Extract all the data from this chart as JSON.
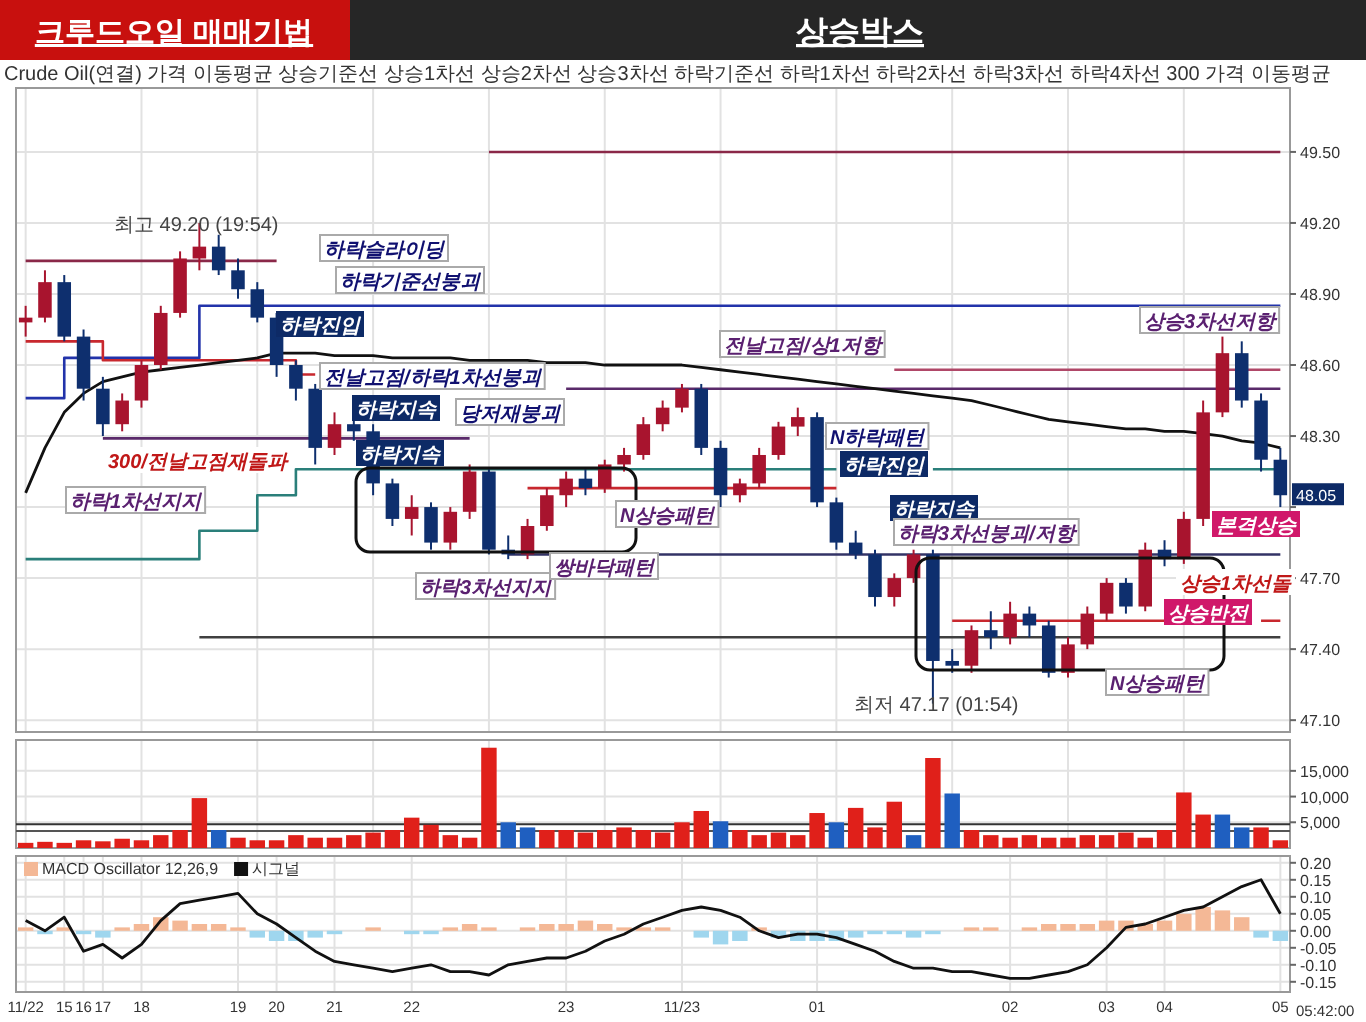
{
  "chart_data": [
    {
      "type": "candlestick",
      "title": "크루드오일 매매기법",
      "subtitle": "상승박스",
      "categories": [
        null,
        null,
        null,
        null,
        null,
        null,
        null,
        null,
        null,
        null,
        null,
        null,
        null,
        null,
        null,
        null,
        null,
        null,
        null,
        null,
        null,
        null,
        null,
        null,
        null,
        null,
        null,
        null,
        null,
        null,
        null,
        null,
        null,
        null,
        null,
        null,
        null,
        null,
        null,
        null,
        null,
        null,
        null,
        null,
        null,
        null,
        null,
        null,
        null,
        null,
        null,
        null,
        null,
        null,
        null,
        null,
        null,
        null,
        null,
        null,
        null,
        null,
        null,
        null,
        null,
        null
      ],
      "ohlc": [
        [
          48.78,
          48.85,
          48.72,
          48.8
        ],
        [
          48.8,
          49.0,
          48.78,
          48.95
        ],
        [
          48.95,
          48.98,
          48.7,
          48.72
        ],
        [
          48.72,
          48.75,
          48.45,
          48.5
        ],
        [
          48.5,
          48.55,
          48.3,
          48.35
        ],
        [
          48.35,
          48.48,
          48.32,
          48.45
        ],
        [
          48.45,
          48.62,
          48.42,
          48.6
        ],
        [
          48.6,
          48.85,
          48.58,
          48.82
        ],
        [
          48.82,
          49.08,
          48.8,
          49.05
        ],
        [
          49.05,
          49.2,
          49.0,
          49.1
        ],
        [
          49.1,
          49.15,
          48.98,
          49.0
        ],
        [
          49.0,
          49.05,
          48.88,
          48.92
        ],
        [
          48.92,
          48.95,
          48.78,
          48.8
        ],
        [
          48.8,
          48.82,
          48.55,
          48.6
        ],
        [
          48.6,
          48.62,
          48.45,
          48.5
        ],
        [
          48.5,
          48.52,
          48.18,
          48.25
        ],
        [
          48.25,
          48.4,
          48.22,
          48.35
        ],
        [
          48.35,
          48.42,
          48.28,
          48.32
        ],
        [
          48.32,
          48.35,
          48.05,
          48.1
        ],
        [
          48.1,
          48.12,
          47.92,
          47.95
        ],
        [
          47.95,
          48.05,
          47.88,
          48.0
        ],
        [
          48.0,
          48.02,
          47.82,
          47.85
        ],
        [
          47.85,
          48.0,
          47.82,
          47.98
        ],
        [
          47.98,
          48.18,
          47.95,
          48.15
        ],
        [
          48.15,
          48.16,
          47.8,
          47.82
        ],
        [
          47.82,
          47.88,
          47.78,
          47.8
        ],
        [
          47.8,
          47.95,
          47.78,
          47.92
        ],
        [
          47.92,
          48.08,
          47.9,
          48.05
        ],
        [
          48.05,
          48.15,
          48.0,
          48.12
        ],
        [
          48.12,
          48.16,
          48.05,
          48.08
        ],
        [
          48.08,
          48.2,
          48.06,
          48.18
        ],
        [
          48.18,
          48.25,
          48.15,
          48.22
        ],
        [
          48.22,
          48.38,
          48.2,
          48.35
        ],
        [
          48.35,
          48.45,
          48.32,
          48.42
        ],
        [
          48.42,
          48.52,
          48.4,
          48.5
        ],
        [
          48.5,
          48.52,
          48.22,
          48.25
        ],
        [
          48.25,
          48.28,
          48.0,
          48.05
        ],
        [
          48.05,
          48.12,
          48.02,
          48.1
        ],
        [
          48.1,
          48.25,
          48.08,
          48.22
        ],
        [
          48.22,
          48.36,
          48.2,
          48.34
        ],
        [
          48.34,
          48.42,
          48.3,
          48.38
        ],
        [
          48.38,
          48.4,
          48.0,
          48.02
        ],
        [
          48.02,
          48.04,
          47.82,
          47.85
        ],
        [
          47.85,
          47.9,
          47.78,
          47.8
        ],
        [
          47.8,
          47.82,
          47.58,
          47.62
        ],
        [
          47.62,
          47.72,
          47.58,
          47.7
        ],
        [
          47.7,
          47.82,
          47.68,
          47.8
        ],
        [
          47.8,
          47.82,
          47.17,
          47.35
        ],
        [
          47.35,
          47.4,
          47.3,
          47.33
        ],
        [
          47.33,
          47.5,
          47.3,
          47.48
        ],
        [
          47.48,
          47.56,
          47.4,
          47.45
        ],
        [
          47.45,
          47.6,
          47.42,
          47.55
        ],
        [
          47.55,
          47.58,
          47.45,
          47.5
        ],
        [
          47.5,
          47.52,
          47.28,
          47.3
        ],
        [
          47.3,
          47.45,
          47.28,
          47.42
        ],
        [
          47.42,
          47.58,
          47.4,
          47.55
        ],
        [
          47.55,
          47.7,
          47.52,
          47.68
        ],
        [
          47.68,
          47.7,
          47.55,
          47.58
        ],
        [
          47.58,
          47.85,
          47.56,
          47.82
        ],
        [
          47.82,
          47.86,
          47.75,
          47.78
        ],
        [
          47.78,
          47.98,
          47.76,
          47.95
        ],
        [
          47.95,
          48.45,
          47.92,
          48.4
        ],
        [
          48.4,
          48.72,
          48.38,
          48.65
        ],
        [
          48.65,
          48.7,
          48.42,
          48.45
        ],
        [
          48.45,
          48.48,
          48.15,
          48.2
        ],
        [
          48.2,
          48.25,
          48.0,
          48.05
        ]
      ],
      "colors": [
        "#a8142e",
        "#a8142e",
        "#0e2f6e",
        "#0e2f6e",
        "#0e2f6e",
        "#a8142e",
        "#a8142e",
        "#a8142e",
        "#a8142e",
        "#a8142e",
        "#0e2f6e",
        "#0e2f6e",
        "#0e2f6e",
        "#0e2f6e",
        "#0e2f6e",
        "#0e2f6e",
        "#a8142e",
        "#0e2f6e",
        "#0e2f6e",
        "#0e2f6e",
        "#a8142e",
        "#0e2f6e",
        "#a8142e",
        "#a8142e",
        "#0e2f6e",
        "#0e2f6e",
        "#a8142e",
        "#a8142e",
        "#a8142e",
        "#0e2f6e",
        "#a8142e",
        "#a8142e",
        "#a8142e",
        "#a8142e",
        "#a8142e",
        "#0e2f6e",
        "#0e2f6e",
        "#a8142e",
        "#a8142e",
        "#a8142e",
        "#a8142e",
        "#0e2f6e",
        "#0e2f6e",
        "#0e2f6e",
        "#0e2f6e",
        "#a8142e",
        "#a8142e",
        "#0e2f6e",
        "#0e2f6e",
        "#a8142e",
        "#0e2f6e",
        "#a8142e",
        "#0e2f6e",
        "#0e2f6e",
        "#a8142e",
        "#a8142e",
        "#a8142e",
        "#0e2f6e",
        "#a8142e",
        "#0e2f6e",
        "#a8142e",
        "#a8142e",
        "#a8142e",
        "#0e2f6e",
        "#0e2f6e",
        "#0e2f6e"
      ],
      "series": [
        {
          "type": "step",
          "color": "#2233aa",
          "values": [
            48.46,
            48.46,
            48.63,
            48.63,
            48.63,
            48.63,
            48.63,
            48.63,
            48.63,
            48.85,
            48.85,
            48.85,
            48.85,
            48.85,
            48.85,
            48.85,
            48.85,
            48.85,
            48.85,
            48.85,
            48.85,
            48.85,
            48.85,
            48.85,
            48.85,
            48.85,
            48.85,
            48.85,
            48.85,
            48.85,
            48.85,
            48.85,
            48.85,
            48.85,
            48.85,
            48.85,
            48.85,
            48.85,
            48.85,
            48.85,
            48.85,
            48.85,
            48.85,
            48.85,
            48.85,
            48.85,
            48.85,
            48.85,
            48.85,
            48.85,
            48.85,
            48.85,
            48.85,
            48.85,
            48.85,
            48.85,
            48.85,
            48.85,
            48.85,
            48.85,
            48.85,
            48.85,
            48.85,
            48.85,
            48.85,
            48.85
          ]
        },
        {
          "type": "step",
          "color": "#c8282e",
          "values": [
            48.7,
            48.7,
            48.7,
            48.7,
            48.62,
            48.62,
            48.62,
            48.62,
            48.62,
            48.62,
            48.62,
            48.62,
            48.62,
            48.62,
            48.56,
            48.56,
            null,
            null,
            null,
            null,
            null,
            null,
            null,
            null,
            null,
            null,
            48.08,
            48.08,
            48.08,
            48.08,
            48.08,
            48.08,
            48.08,
            48.08,
            48.08,
            48.08,
            48.08,
            48.08,
            48.08,
            48.08,
            48.08,
            48.08,
            48.08,
            null,
            null,
            null,
            null,
            null,
            47.52,
            47.52,
            47.52,
            47.52,
            47.52,
            47.52,
            47.52,
            47.52,
            47.52,
            47.52,
            47.52,
            47.52,
            null,
            null,
            null,
            null,
            47.52,
            47.52
          ]
        },
        {
          "type": "step",
          "color": "#2a7f7a",
          "values": [
            47.78,
            47.78,
            47.78,
            47.78,
            47.78,
            47.78,
            47.78,
            47.78,
            47.78,
            47.9,
            47.9,
            47.9,
            48.05,
            48.05,
            48.16,
            48.16,
            48.16,
            48.16,
            48.16,
            48.16,
            48.16,
            48.16,
            48.16,
            48.16,
            48.16,
            48.16,
            48.16,
            48.16,
            48.16,
            48.16,
            48.16,
            48.16,
            48.16,
            48.16,
            48.16,
            48.16,
            48.16,
            48.16,
            48.16,
            48.16,
            48.16,
            48.16,
            48.16,
            null,
            null,
            null,
            null,
            48.16,
            48.16,
            48.16,
            48.16,
            48.16,
            48.16,
            48.16,
            48.16,
            48.16,
            48.16,
            48.16,
            48.16,
            48.16,
            48.16,
            48.16,
            48.16,
            48.16,
            48.16,
            48.16
          ]
        },
        {
          "type": "step",
          "color": "#5a2a6a",
          "values": [
            null,
            null,
            null,
            null,
            48.29,
            48.29,
            48.29,
            48.29,
            48.29,
            48.29,
            48.29,
            48.29,
            48.29,
            48.29,
            48.29,
            48.29,
            48.29,
            48.29,
            48.29,
            48.29,
            48.29,
            48.29,
            48.29,
            48.29,
            null,
            null,
            null,
            null,
            48.5,
            48.5,
            48.5,
            48.5,
            48.5,
            48.5,
            48.5,
            48.5,
            48.5,
            48.5,
            48.5,
            48.5,
            48.5,
            48.5,
            48.5,
            48.5,
            48.5,
            48.5,
            48.5,
            48.5,
            48.5,
            48.5,
            48.5,
            48.5,
            48.5,
            48.5,
            48.5,
            48.5,
            48.5,
            48.5,
            48.5,
            48.5,
            48.5,
            48.5,
            48.5,
            48.5,
            48.5,
            48.5
          ]
        },
        {
          "type": "step",
          "color": "#333366",
          "values": [
            null,
            null,
            null,
            null,
            null,
            null,
            null,
            null,
            null,
            null,
            null,
            null,
            null,
            null,
            null,
            null,
            null,
            null,
            null,
            null,
            null,
            null,
            null,
            null,
            null,
            47.8,
            47.8,
            47.8,
            47.8,
            47.8,
            47.8,
            47.8,
            47.8,
            47.8,
            47.8,
            47.8,
            47.8,
            47.8,
            47.8,
            47.8,
            47.8,
            47.8,
            47.8,
            47.8,
            47.8,
            47.8,
            47.8,
            47.8,
            47.8,
            47.8,
            47.8,
            47.8,
            47.8,
            47.8,
            47.8,
            47.8,
            47.8,
            47.8,
            47.8,
            47.8,
            47.8,
            47.8,
            47.8,
            47.8,
            47.8,
            47.8
          ]
        },
        {
          "type": "step",
          "color": "#404040",
          "values": [
            null,
            null,
            null,
            null,
            null,
            null,
            null,
            null,
            null,
            47.45,
            47.45,
            47.45,
            47.45,
            47.45,
            47.45,
            47.45,
            47.45,
            47.45,
            47.45,
            47.45,
            47.45,
            47.45,
            47.45,
            47.45,
            47.45,
            47.45,
            47.45,
            47.45,
            47.45,
            47.45,
            47.45,
            47.45,
            47.45,
            47.45,
            47.45,
            47.45,
            47.45,
            47.45,
            47.45,
            47.45,
            47.45,
            47.45,
            47.45,
            47.45,
            47.45,
            47.45,
            47.45,
            47.45,
            47.45,
            47.45,
            47.45,
            47.45,
            47.45,
            47.45,
            47.45,
            47.45,
            47.45,
            47.45,
            47.45,
            47.45,
            47.45,
            47.45,
            47.45,
            47.45,
            47.45,
            47.45
          ]
        },
        {
          "type": "step",
          "color": "#8a2848",
          "values": [
            49.04,
            49.04,
            49.04,
            49.04,
            49.04,
            49.04,
            49.04,
            49.04,
            49.04,
            49.04,
            49.04,
            49.04,
            49.04,
            49.04,
            null,
            null,
            null,
            null,
            null,
            null,
            null,
            null,
            null,
            null,
            49.5,
            49.5,
            49.5,
            49.5,
            49.5,
            49.5,
            49.5,
            49.5,
            49.5,
            49.5,
            49.5,
            49.5,
            49.5,
            49.5,
            49.5,
            49.5,
            49.5,
            49.5,
            49.5,
            49.5,
            49.5,
            49.5,
            49.5,
            49.5,
            49.5,
            49.5,
            49.5,
            49.5,
            49.5,
            49.5,
            49.5,
            49.5,
            49.5,
            49.5,
            49.5,
            49.5,
            49.5,
            49.5,
            49.5,
            49.5,
            49.5,
            49.5
          ]
        },
        {
          "type": "step",
          "color": "#b04868",
          "values": [
            null,
            null,
            null,
            null,
            null,
            null,
            null,
            null,
            null,
            null,
            null,
            null,
            null,
            null,
            null,
            null,
            null,
            null,
            null,
            null,
            null,
            null,
            null,
            null,
            null,
            null,
            null,
            null,
            null,
            null,
            null,
            null,
            null,
            null,
            null,
            null,
            null,
            null,
            null,
            null,
            null,
            null,
            null,
            null,
            null,
            48.58,
            48.58,
            48.58,
            48.58,
            48.58,
            48.58,
            48.58,
            48.58,
            48.58,
            48.58,
            48.58,
            48.58,
            48.58,
            48.58,
            48.58,
            48.58,
            48.58,
            48.58,
            48.58,
            48.58,
            48.58
          ]
        },
        {
          "type": "line",
          "color": "#111111",
          "values": [
            48.06,
            48.25,
            48.4,
            48.48,
            48.53,
            48.55,
            48.57,
            48.58,
            48.59,
            48.6,
            48.61,
            48.62,
            48.63,
            48.65,
            48.65,
            48.65,
            48.64,
            48.64,
            48.64,
            48.63,
            48.63,
            48.63,
            48.63,
            48.62,
            48.62,
            48.62,
            48.62,
            48.61,
            48.61,
            48.61,
            48.6,
            48.6,
            48.6,
            48.6,
            48.6,
            48.59,
            48.58,
            48.57,
            48.56,
            48.55,
            48.54,
            48.53,
            48.52,
            48.51,
            48.5,
            48.49,
            48.48,
            48.47,
            48.46,
            48.45,
            48.43,
            48.41,
            48.39,
            48.37,
            48.36,
            48.35,
            48.34,
            48.33,
            48.33,
            48.32,
            48.32,
            48.31,
            48.3,
            48.28,
            48.27,
            48.25
          ]
        }
      ],
      "ylim": [
        47.05,
        49.77
      ],
      "yticks": [
        {
          "value": 47.1,
          "label": "47.10"
        },
        {
          "value": 47.4,
          "label": "47.40"
        },
        {
          "value": 47.7,
          "label": "47.70"
        },
        {
          "value": 48.0,
          "label": null
        },
        {
          "value": 48.3,
          "label": "48.30"
        },
        {
          "value": 48.6,
          "label": "48.60"
        },
        {
          "value": 48.9,
          "label": "48.90"
        },
        {
          "value": 49.2,
          "label": "49.20"
        },
        {
          "value": 49.5,
          "label": "49.50"
        }
      ],
      "tick_labels": "y",
      "grid": true,
      "annotations": [
        "Crude Oil(연결) 가격 이동평균 상승기준선 상승1차선 상승2차선 상승3차선 하락기준선 하락1차선 하락2차선 하락3차선 하락4차선 300 가격 이동평균",
        "하락슬라이딩",
        "하락기준선붕괴",
        "하락진입",
        "전날고점/하락1차선붕괴",
        "300/전날고점재돌파",
        "하락지속",
        "당저재붕괴",
        "하락지속",
        "하락1차선지지",
        "하락3차선지지",
        "쌍바닥패턴",
        "N상승패턴",
        "전날고점/상1저항",
        "N하락패턴",
        "하락진입",
        "하락지속",
        "하락3차선붕괴/저항",
        "N상승패턴",
        "상승반전",
        "본격상승",
        "상승1차선돌",
        "상승3차선저항",
        {
          "text": "최고 49.20 (19:54)",
          "y": 49.2
        },
        {
          "text": "최저 47.17 (01:54)",
          "y": 47.17
        },
        {
          "text": "48.05",
          "y": 48.05
        }
      ]
    },
    {
      "type": "bar",
      "categories": [
        null,
        null,
        null,
        null,
        null,
        null,
        null,
        null,
        null,
        null,
        null,
        null,
        null,
        null,
        null,
        null,
        null,
        null,
        null,
        null,
        null,
        null,
        null,
        null,
        null,
        null,
        null,
        null,
        null,
        null,
        null,
        null,
        null,
        null,
        null,
        null,
        null,
        null,
        null,
        null,
        null,
        null,
        null,
        null,
        null,
        null,
        null,
        null,
        null,
        null,
        null,
        null,
        null,
        null,
        null,
        null,
        null,
        null,
        null,
        null,
        null,
        null,
        null,
        null,
        null,
        null
      ],
      "values": [
        1000,
        1200,
        1000,
        1500,
        1300,
        1800,
        1500,
        2500,
        3500,
        9700,
        3500,
        2000,
        1500,
        1500,
        2500,
        2000,
        2000,
        2500,
        3000,
        3500,
        5900,
        4500,
        2500,
        2000,
        19500,
        5000,
        4000,
        3500,
        3500,
        3000,
        3500,
        4000,
        3500,
        3000,
        5000,
        7200,
        5200,
        3500,
        2500,
        3000,
        2500,
        6800,
        5000,
        7800,
        4000,
        9000,
        2500,
        17500,
        10600,
        3500,
        2500,
        2000,
        2500,
        2000,
        2000,
        2500,
        2500,
        3000,
        2000,
        3500,
        10800,
        6500,
        6500,
        4000,
        4000,
        1500
      ],
      "colors": [
        "#e0201a",
        "#e0201a",
        "#e0201a",
        "#e0201a",
        "#e0201a",
        "#e0201a",
        "#e0201a",
        "#e0201a",
        "#e0201a",
        "#e0201a",
        "#1f5fc0",
        "#e0201a",
        "#e0201a",
        "#e0201a",
        "#e0201a",
        "#e0201a",
        "#e0201a",
        "#e0201a",
        "#e0201a",
        "#e0201a",
        "#e0201a",
        "#e0201a",
        "#e0201a",
        "#e0201a",
        "#e0201a",
        "#1f5fc0",
        "#1f5fc0",
        "#e0201a",
        "#e0201a",
        "#e0201a",
        "#e0201a",
        "#e0201a",
        "#e0201a",
        "#e0201a",
        "#e0201a",
        "#e0201a",
        "#1f5fc0",
        "#e0201a",
        "#e0201a",
        "#e0201a",
        "#e0201a",
        "#e0201a",
        "#1f5fc0",
        "#e0201a",
        "#e0201a",
        "#e0201a",
        "#1f5fc0",
        "#e0201a",
        "#1f5fc0",
        "#e0201a",
        "#e0201a",
        "#e0201a",
        "#e0201a",
        "#e0201a",
        "#e0201a",
        "#e0201a",
        "#e0201a",
        "#e0201a",
        "#e0201a",
        "#e0201a",
        "#e0201a",
        "#e0201a",
        "#1f5fc0",
        "#1f5fc0",
        "#e0201a",
        "#e0201a"
      ],
      "ylim": [
        0,
        21000
      ],
      "yticks": [
        {
          "value": 5000,
          "label": "5,000"
        },
        {
          "value": 10000,
          "label": "10,000"
        },
        {
          "value": 15000,
          "label": "15,000"
        }
      ],
      "tick_labels": "y",
      "grid": true,
      "ref_lines": [
        {
          "axis": "y",
          "value": 4600,
          "color": "#333333"
        },
        {
          "axis": "y",
          "value": 3300,
          "color": "#555555"
        }
      ]
    },
    {
      "type": "bar",
      "categories": [
        "11/22",
        null,
        "15",
        "16",
        "17",
        null,
        "18",
        null,
        null,
        null,
        null,
        "19",
        null,
        "20",
        null,
        null,
        "21",
        null,
        null,
        null,
        "22",
        null,
        null,
        null,
        null,
        null,
        null,
        null,
        "23",
        null,
        null,
        null,
        null,
        null,
        "11/23",
        null,
        null,
        null,
        null,
        null,
        null,
        "01",
        null,
        null,
        null,
        null,
        null,
        null,
        null,
        null,
        null,
        "02",
        null,
        null,
        null,
        null,
        "03",
        null,
        null,
        "04",
        null,
        null,
        null,
        null,
        null,
        "05"
      ],
      "series": [
        {
          "name": "MACD Oscillator 12,26,9",
          "type": "bar",
          "colors": [
            "#f4b896",
            "#9fd6ee",
            "#f4b896",
            "#9fd6ee",
            "#9fd6ee",
            "#f4b896",
            "#f4b896",
            "#f4b896",
            "#f4b896",
            "#f4b896",
            "#f4b896",
            "#f4b896",
            "#9fd6ee",
            "#9fd6ee",
            "#9fd6ee",
            "#9fd6ee",
            "#9fd6ee",
            "#f4b896",
            "#f4b896",
            "#f4b896",
            "#9fd6ee",
            "#9fd6ee",
            "#f4b896",
            "#f4b896",
            "#f4b896",
            "#f4b896",
            "#f4b896",
            "#f4b896",
            "#f4b896",
            "#f4b896",
            "#f4b896",
            "#f4b896",
            "#f4b896",
            "#f4b896",
            "#f4b896",
            "#9fd6ee",
            "#9fd6ee",
            "#9fd6ee",
            "#f4b896",
            "#9fd6ee",
            "#9fd6ee",
            "#9fd6ee",
            "#9fd6ee",
            "#9fd6ee",
            "#9fd6ee",
            "#9fd6ee",
            "#9fd6ee",
            "#9fd6ee",
            "#f4b896",
            "#f4b896",
            "#f4b896",
            "#f4b896",
            "#f4b896",
            "#f4b896",
            "#f4b896",
            "#f4b896",
            "#f4b896",
            "#f4b896",
            "#f4b896",
            "#f4b896",
            "#f4b896",
            "#f4b896",
            "#f4b896",
            "#f4b896",
            "#9fd6ee",
            "#9fd6ee"
          ],
          "values": [
            0.01,
            -0.01,
            0.01,
            -0.01,
            -0.02,
            0.01,
            0.02,
            0.04,
            0.03,
            0.02,
            0.02,
            0.01,
            -0.02,
            -0.03,
            -0.03,
            -0.02,
            -0.01,
            0.0,
            0.01,
            0.0,
            -0.01,
            -0.01,
            0.01,
            0.02,
            0.01,
            0.0,
            0.01,
            0.02,
            0.02,
            0.03,
            0.02,
            0.01,
            0.01,
            0.01,
            0.0,
            -0.02,
            -0.04,
            -0.03,
            0.01,
            -0.02,
            -0.03,
            -0.03,
            -0.03,
            -0.02,
            -0.01,
            -0.01,
            -0.02,
            -0.01,
            0.0,
            0.01,
            0.01,
            0.0,
            0.01,
            0.02,
            0.02,
            0.02,
            0.03,
            0.03,
            0.02,
            0.03,
            0.05,
            0.07,
            0.06,
            0.04,
            -0.02,
            -0.03
          ]
        },
        {
          "name": "시그널",
          "type": "line",
          "color": "#111111",
          "values": [
            0.03,
            0.0,
            0.04,
            -0.06,
            -0.04,
            -0.08,
            -0.04,
            0.03,
            0.08,
            0.09,
            0.1,
            0.11,
            0.05,
            0.02,
            -0.02,
            -0.06,
            -0.09,
            -0.1,
            -0.11,
            -0.12,
            -0.11,
            -0.1,
            -0.12,
            -0.12,
            -0.13,
            -0.1,
            -0.09,
            -0.08,
            -0.08,
            -0.06,
            -0.03,
            -0.01,
            0.02,
            0.04,
            0.06,
            0.07,
            0.06,
            0.04,
            0.0,
            -0.02,
            -0.01,
            -0.01,
            -0.02,
            -0.04,
            -0.06,
            -0.09,
            -0.11,
            -0.11,
            -0.12,
            -0.12,
            -0.13,
            -0.14,
            -0.14,
            -0.13,
            -0.12,
            -0.1,
            -0.05,
            0.01,
            0.02,
            0.04,
            0.06,
            0.07,
            0.1,
            0.13,
            0.15,
            0.05
          ]
        }
      ],
      "ylim": [
        -0.18,
        0.22
      ],
      "yticks": [
        {
          "value": -0.15,
          "label": "-0.15"
        },
        {
          "value": -0.1,
          "label": "-0.10"
        },
        {
          "value": -0.05,
          "label": "-0.05"
        },
        {
          "value": 0,
          "label": "0.00"
        },
        {
          "value": 0.05,
          "label": "0.05"
        },
        {
          "value": 0.1,
          "label": "0.10"
        },
        {
          "value": 0.15,
          "label": "0.15"
        },
        {
          "value": 0.2,
          "label": "0.20"
        }
      ],
      "grid": true,
      "legend": "top left",
      "annotations": [
        "05:42:00"
      ]
    }
  ]
}
